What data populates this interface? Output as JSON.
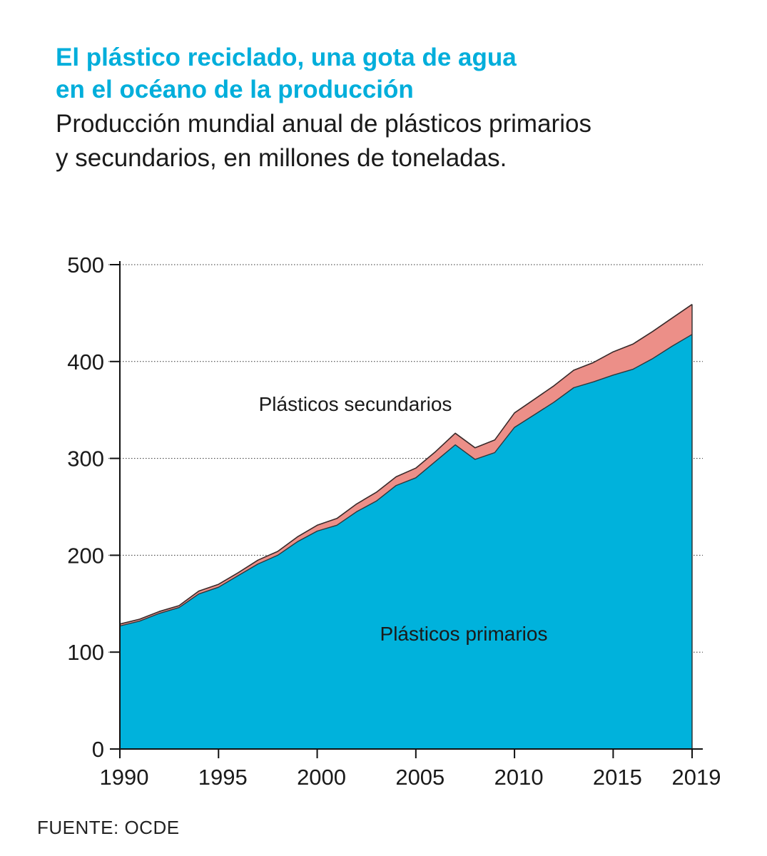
{
  "header": {
    "title_line1": "El plástico reciclado, una gota de agua",
    "title_line2": "en el océano de la producción",
    "subtitle_line1": "Producción mundial anual de plásticos primarios",
    "subtitle_line2": "y secundarios, en millones de toneladas."
  },
  "chart_data": {
    "type": "area",
    "stacked": true,
    "x": [
      1990,
      1991,
      1992,
      1993,
      1994,
      1995,
      1996,
      1997,
      1998,
      1999,
      2000,
      2001,
      2002,
      2003,
      2004,
      2005,
      2006,
      2007,
      2008,
      2009,
      2010,
      2011,
      2012,
      2013,
      2014,
      2015,
      2016,
      2017,
      2018,
      2019
    ],
    "series": [
      {
        "name": "Plásticos primarios",
        "color": "#00b2dc",
        "values": [
          127,
          132,
          140,
          146,
          160,
          167,
          179,
          191,
          200,
          214,
          225,
          231,
          245,
          256,
          272,
          280,
          297,
          314,
          299,
          306,
          332,
          345,
          358,
          373,
          379,
          386,
          392,
          403,
          416,
          428
        ]
      },
      {
        "name": "Plásticos secundarios",
        "color": "#ec8f88",
        "values": [
          2,
          2,
          2,
          2,
          3,
          3,
          3,
          4,
          4,
          5,
          6,
          7,
          8,
          9,
          9,
          10,
          10,
          12,
          12,
          13,
          15,
          16,
          17,
          18,
          20,
          24,
          26,
          28,
          29,
          31
        ]
      }
    ],
    "x_ticks": [
      1990,
      1995,
      2000,
      2005,
      2010,
      2015,
      2019
    ],
    "y_ticks": [
      0,
      100,
      200,
      300,
      400,
      500
    ],
    "xlim": [
      1990,
      2019
    ],
    "ylim": [
      0,
      500
    ],
    "grid": "horizontal dotted",
    "legend": "inline labels"
  },
  "footer": {
    "source": "FUENTE: OCDE"
  }
}
